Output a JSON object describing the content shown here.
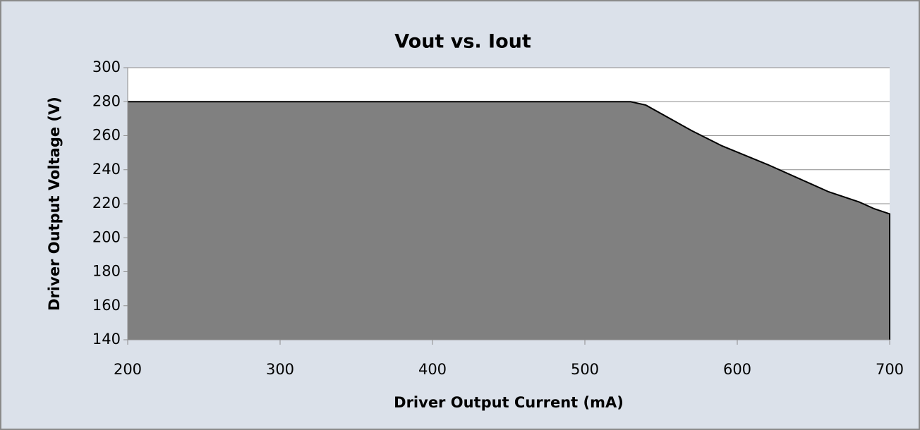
{
  "chart_data": {
    "type": "area",
    "title": "Vout vs. Iout",
    "x_label": "Driver Output Current (mA)",
    "y_label": "Driver Output Voltage (V)",
    "x": [
      200,
      530,
      540,
      570,
      590,
      620,
      640,
      650,
      660,
      680,
      690,
      700
    ],
    "values": [
      280,
      280,
      278,
      263,
      254,
      243,
      235,
      231,
      227,
      221,
      217,
      214
    ],
    "color": "#808080",
    "line_color": "#000000",
    "xlim": [
      200,
      700
    ],
    "xticks": [
      200,
      300,
      400,
      500,
      600,
      700
    ],
    "ylim": [
      140,
      300
    ],
    "yticks": [
      140,
      160,
      180,
      200,
      220,
      240,
      260,
      280,
      300
    ],
    "grid": true
  }
}
